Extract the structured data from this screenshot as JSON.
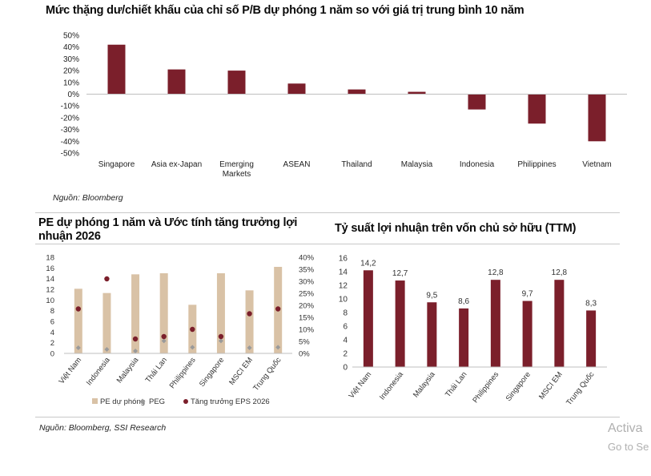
{
  "chart_data": [
    {
      "id": "pb",
      "type": "bar",
      "title": "Mức thặng dư/chiết khấu của chỉ số P/B dự phóng 1 năm so với giá trị trung bình 10 năm",
      "categories": [
        "Singapore",
        "Asia ex-Japan",
        "Emerging Markets",
        "ASEAN",
        "Thailand",
        "Malaysia",
        "Indonesia",
        "Philippines",
        "Vietnam"
      ],
      "category_lines": [
        [
          "Singapore"
        ],
        [
          "Asia ex-Japan"
        ],
        [
          "Emerging",
          "Markets"
        ],
        [
          "ASEAN"
        ],
        [
          "Thailand"
        ],
        [
          "Malaysia"
        ],
        [
          "Indonesia"
        ],
        [
          "Philippines"
        ],
        [
          "Vietnam"
        ]
      ],
      "values": [
        42,
        21,
        20,
        9,
        4,
        2,
        -13,
        -25,
        -40
      ],
      "ylim": [
        -50,
        50
      ],
      "yticks": [
        "50%",
        "40%",
        "30%",
        "20%",
        "10%",
        "0%",
        "-10%",
        "-20%",
        "-30%",
        "-40%",
        "-50%"
      ],
      "ytick_values": [
        50,
        40,
        30,
        20,
        10,
        0,
        -10,
        -20,
        -30,
        -40,
        -50
      ],
      "source": "Nguồn: Bloomberg",
      "colors": {
        "bar": "#7b1f2b",
        "axis": "#bfbfbf"
      }
    },
    {
      "id": "pe",
      "type": "bar+scatter",
      "title": "PE dự phóng 1 năm và Ước tính tăng trưởng lợi nhuận 2026",
      "categories": [
        "Việt Nam",
        "Indonesia",
        "Malaysia",
        "Thái Lan",
        "Philippines",
        "Singapore",
        "MSCI EM",
        "Trung Quốc"
      ],
      "series": [
        {
          "name": "PE dự phóng",
          "kind": "bar",
          "axis": "left",
          "values": [
            12.1,
            11.3,
            14.8,
            15.0,
            9.1,
            15.0,
            11.8,
            16.2
          ],
          "color": "#d9c2a6"
        },
        {
          "name": "PEG",
          "kind": "marker-diamond",
          "axis": "left",
          "values": [
            0.6,
            0.3,
            0.0,
            1.9,
            0.7,
            1.9,
            0.6,
            0.7
          ],
          "color": "#9a9a9a"
        },
        {
          "name": "Tăng trưởng EPS 2026",
          "kind": "marker-circle",
          "axis": "right",
          "values": [
            18.5,
            31.0,
            6.0,
            7.0,
            10.0,
            7.0,
            16.5,
            18.5
          ],
          "color": "#7b1f2b"
        }
      ],
      "ylim_left": [
        0,
        18
      ],
      "yticks_left": [
        "18",
        "16",
        "14",
        "12",
        "10",
        "8",
        "6",
        "4",
        "2",
        "0"
      ],
      "ytick_values_left": [
        18,
        16,
        14,
        12,
        10,
        8,
        6,
        4,
        2,
        0
      ],
      "ylim_right": [
        0,
        40
      ],
      "yticks_right": [
        "40%",
        "35%",
        "30%",
        "25%",
        "20%",
        "15%",
        "10%",
        "5%",
        "0%"
      ],
      "ytick_values_right": [
        40,
        35,
        30,
        25,
        20,
        15,
        10,
        5,
        0
      ],
      "legend": [
        "PE dự phóng",
        "PEG",
        "Tăng trưởng EPS 2026"
      ],
      "legend_position": "bottom"
    },
    {
      "id": "roe",
      "type": "bar",
      "title": "Tỷ suất lợi nhuận trên vốn chủ sở hữu (TTM)",
      "categories": [
        "Việt Nam",
        "Indonesia",
        "Malaysia",
        "Thái Lan",
        "Philippines",
        "Singapore",
        "MSCI EM",
        "Trung Quốc"
      ],
      "values": [
        14.2,
        12.7,
        9.5,
        8.6,
        12.8,
        9.7,
        12.8,
        8.3
      ],
      "data_labels": [
        "14,2",
        "12,7",
        "9,5",
        "8,6",
        "12,8",
        "9,7",
        "12,8",
        "8,3"
      ],
      "ylim": [
        0,
        16
      ],
      "yticks": [
        "16",
        "14",
        "12",
        "10",
        "8",
        "6",
        "4",
        "2",
        "0"
      ],
      "ytick_values": [
        16,
        14,
        12,
        10,
        8,
        6,
        4,
        2,
        0
      ],
      "colors": {
        "bar": "#7b1f2b",
        "axis": "#bfbfbf"
      }
    }
  ],
  "sources": {
    "bottom": "Nguồn: Bloomberg, SSI Research"
  },
  "watermark": {
    "line1": "Activa",
    "line2": "Go to Se"
  }
}
